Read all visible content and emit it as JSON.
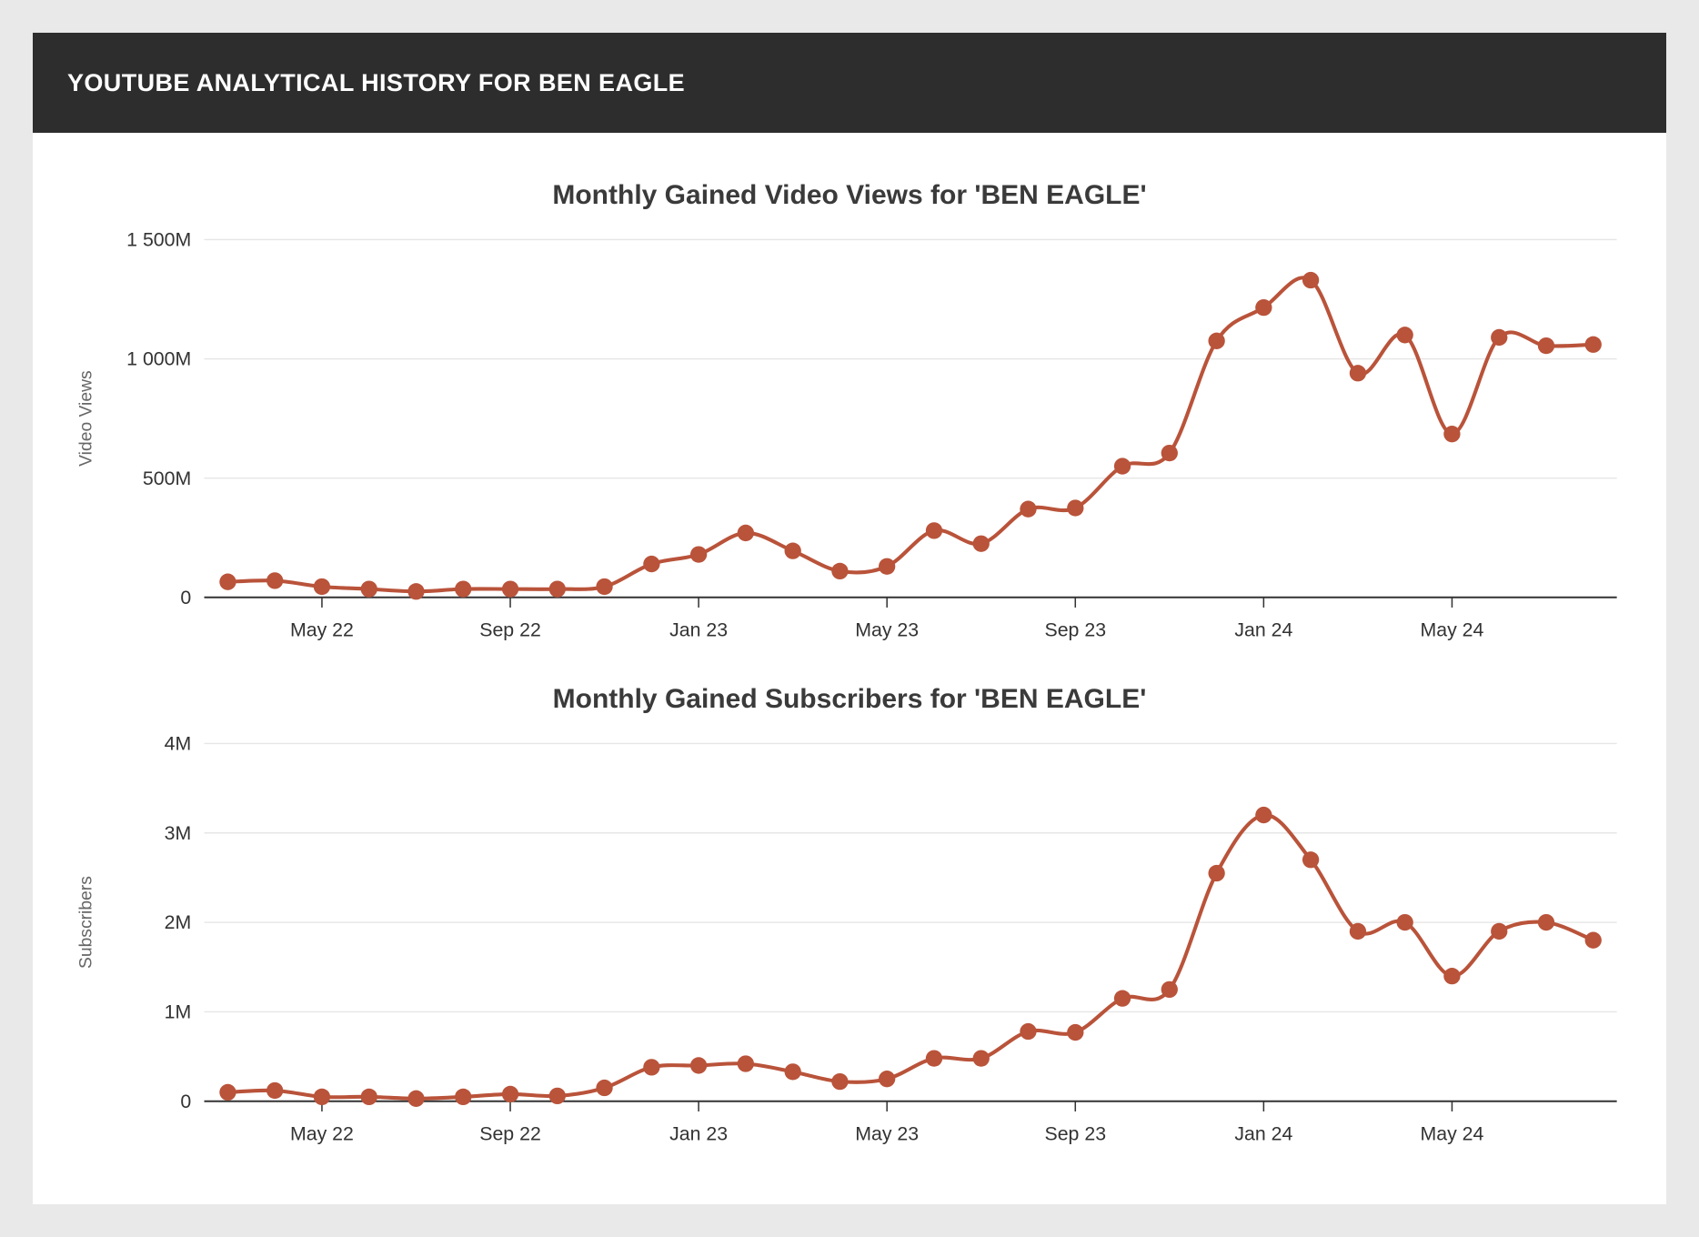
{
  "header": {
    "title": "YOUTUBE ANALYTICAL HISTORY FOR BEN EAGLE"
  },
  "colors": {
    "header_bg": "#2d2d2d",
    "line": "#b9533a",
    "grid": "#e6e6e6",
    "axis": "#333333",
    "tick_label": "#333333",
    "axis_title": "#666666",
    "card_bg": "#ffffff",
    "page_bg": "#e9e9ea"
  },
  "chart_data": [
    {
      "type": "line",
      "title": "Monthly Gained Video Views for 'BEN EAGLE'",
      "ylabel": "Video Views",
      "xlabel": "",
      "unit": "M (millions of views)",
      "legend": false,
      "grid": true,
      "ylim": [
        0,
        1500
      ],
      "x": [
        "Mar 22",
        "Apr 22",
        "May 22",
        "Jun 22",
        "Jul 22",
        "Aug 22",
        "Sep 22",
        "Oct 22",
        "Nov 22",
        "Dec 22",
        "Jan 23",
        "Feb 23",
        "Mar 23",
        "Apr 23",
        "May 23",
        "Jun 23",
        "Jul 23",
        "Aug 23",
        "Sep 23",
        "Oct 23",
        "Nov 23",
        "Dec 23",
        "Jan 24",
        "Feb 24",
        "Mar 24",
        "Apr 24",
        "May 24",
        "Jun 24",
        "Jul 24",
        "Aug 24"
      ],
      "values": [
        65,
        70,
        45,
        35,
        25,
        35,
        35,
        35,
        45,
        140,
        180,
        270,
        195,
        110,
        130,
        280,
        225,
        370,
        375,
        550,
        605,
        1075,
        1215,
        1330,
        940,
        1100,
        685,
        1090,
        1055,
        1060
      ],
      "yticks": [
        {
          "v": 0,
          "label": "0"
        },
        {
          "v": 500,
          "label": "500M"
        },
        {
          "v": 1000,
          "label": "1 000M"
        },
        {
          "v": 1500,
          "label": "1 500M"
        }
      ],
      "xticks": [
        {
          "i": 2,
          "label": "May 22"
        },
        {
          "i": 6,
          "label": "Sep 22"
        },
        {
          "i": 10,
          "label": "Jan 23"
        },
        {
          "i": 14,
          "label": "May 23"
        },
        {
          "i": 18,
          "label": "Sep 23"
        },
        {
          "i": 22,
          "label": "Jan 24"
        },
        {
          "i": 26,
          "label": "May 24"
        }
      ]
    },
    {
      "type": "line",
      "title": "Monthly Gained Subscribers for 'BEN EAGLE'",
      "ylabel": "Subscribers",
      "xlabel": "",
      "unit": "M (millions of subscribers)",
      "legend": false,
      "grid": true,
      "ylim": [
        0,
        4
      ],
      "x": [
        "Mar 22",
        "Apr 22",
        "May 22",
        "Jun 22",
        "Jul 22",
        "Aug 22",
        "Sep 22",
        "Oct 22",
        "Nov 22",
        "Dec 22",
        "Jan 23",
        "Feb 23",
        "Mar 23",
        "Apr 23",
        "May 23",
        "Jun 23",
        "Jul 23",
        "Aug 23",
        "Sep 23",
        "Oct 23",
        "Nov 23",
        "Dec 23",
        "Jan 24",
        "Feb 24",
        "Mar 24",
        "Apr 24",
        "May 24",
        "Jun 24",
        "Jul 24",
        "Aug 24"
      ],
      "values": [
        0.1,
        0.12,
        0.05,
        0.05,
        0.03,
        0.05,
        0.08,
        0.06,
        0.15,
        0.38,
        0.4,
        0.42,
        0.33,
        0.22,
        0.25,
        0.48,
        0.48,
        0.78,
        0.77,
        1.15,
        1.25,
        2.55,
        3.2,
        2.7,
        1.9,
        2.0,
        1.4,
        1.9,
        2.0,
        1.8
      ],
      "yticks": [
        {
          "v": 0,
          "label": "0"
        },
        {
          "v": 1,
          "label": "1M"
        },
        {
          "v": 2,
          "label": "2M"
        },
        {
          "v": 3,
          "label": "3M"
        },
        {
          "v": 4,
          "label": "4M"
        }
      ],
      "xticks": [
        {
          "i": 2,
          "label": "May 22"
        },
        {
          "i": 6,
          "label": "Sep 22"
        },
        {
          "i": 10,
          "label": "Jan 23"
        },
        {
          "i": 14,
          "label": "May 23"
        },
        {
          "i": 18,
          "label": "Sep 23"
        },
        {
          "i": 22,
          "label": "Jan 24"
        },
        {
          "i": 26,
          "label": "May 24"
        }
      ]
    }
  ]
}
